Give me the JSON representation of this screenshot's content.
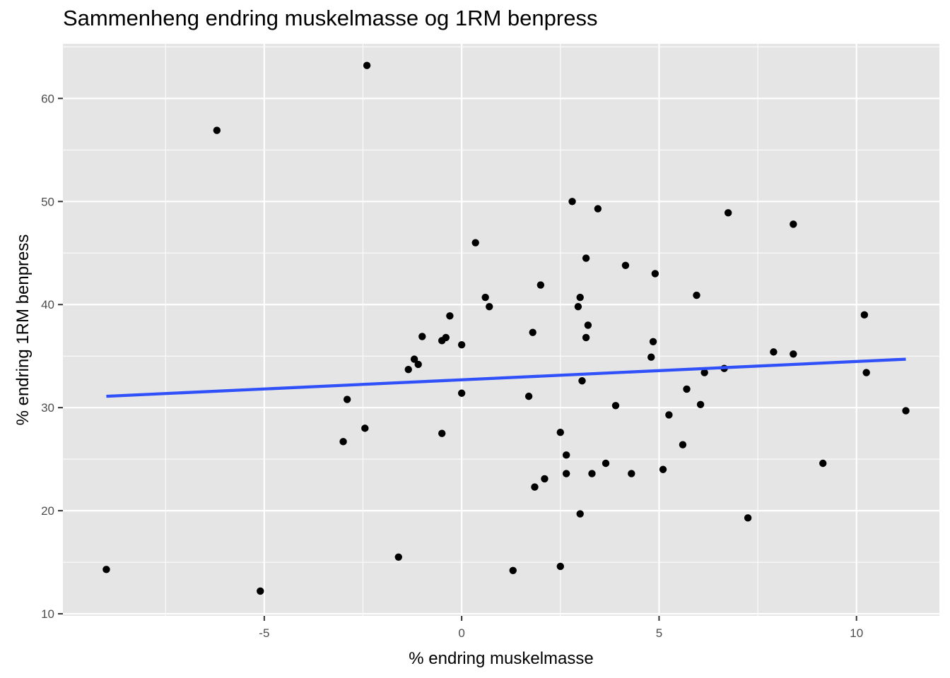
{
  "chart_data": {
    "type": "scatter",
    "title": "Sammenheng endring muskelmasse og 1RM benpress",
    "xlabel": "% endring muskelmasse",
    "ylabel": "% endring 1RM benpress",
    "xlim": [
      -10.1,
      12.1
    ],
    "ylim": [
      9.8,
      65.3
    ],
    "x_ticks": [
      -5,
      0,
      5,
      10
    ],
    "x_tick_labels": [
      "-5",
      "0",
      "5",
      "10"
    ],
    "y_ticks": [
      10,
      20,
      30,
      40,
      50,
      60
    ],
    "y_tick_labels": [
      "10",
      "20",
      "30",
      "40",
      "50",
      "60"
    ],
    "grid": true,
    "legend": "none",
    "colors": {
      "panel": "#e5e5e5",
      "grid": "#ffffff",
      "point": "#000000",
      "trend": "#3050fa"
    },
    "points": [
      {
        "x": -9.0,
        "y": 14.3
      },
      {
        "x": -6.2,
        "y": 56.9
      },
      {
        "x": -5.1,
        "y": 12.2
      },
      {
        "x": -3.0,
        "y": 26.7
      },
      {
        "x": -2.9,
        "y": 30.8
      },
      {
        "x": -2.45,
        "y": 28.0
      },
      {
        "x": -2.4,
        "y": 63.2
      },
      {
        "x": -1.6,
        "y": 15.5
      },
      {
        "x": -1.35,
        "y": 33.7
      },
      {
        "x": -1.2,
        "y": 34.7
      },
      {
        "x": -1.1,
        "y": 34.2
      },
      {
        "x": -1.0,
        "y": 36.9
      },
      {
        "x": -0.5,
        "y": 27.5
      },
      {
        "x": -0.5,
        "y": 36.5
      },
      {
        "x": -0.4,
        "y": 36.8
      },
      {
        "x": -0.3,
        "y": 38.9
      },
      {
        "x": 0.0,
        "y": 36.1
      },
      {
        "x": 0.0,
        "y": 31.4
      },
      {
        "x": 0.35,
        "y": 46.0
      },
      {
        "x": 0.6,
        "y": 40.7
      },
      {
        "x": 0.7,
        "y": 39.8
      },
      {
        "x": 1.3,
        "y": 14.2
      },
      {
        "x": 1.7,
        "y": 31.1
      },
      {
        "x": 1.8,
        "y": 37.3
      },
      {
        "x": 1.85,
        "y": 22.3
      },
      {
        "x": 2.0,
        "y": 41.9
      },
      {
        "x": 2.1,
        "y": 23.1
      },
      {
        "x": 2.5,
        "y": 27.6
      },
      {
        "x": 2.5,
        "y": 14.6
      },
      {
        "x": 2.65,
        "y": 25.4
      },
      {
        "x": 2.65,
        "y": 23.6
      },
      {
        "x": 2.8,
        "y": 50.0
      },
      {
        "x": 2.95,
        "y": 39.8
      },
      {
        "x": 3.0,
        "y": 40.7
      },
      {
        "x": 3.0,
        "y": 19.7
      },
      {
        "x": 3.05,
        "y": 32.6
      },
      {
        "x": 3.15,
        "y": 44.5
      },
      {
        "x": 3.15,
        "y": 36.8
      },
      {
        "x": 3.2,
        "y": 38.0
      },
      {
        "x": 3.3,
        "y": 23.6
      },
      {
        "x": 3.45,
        "y": 49.3
      },
      {
        "x": 3.65,
        "y": 24.6
      },
      {
        "x": 3.9,
        "y": 30.2
      },
      {
        "x": 4.15,
        "y": 43.8
      },
      {
        "x": 4.3,
        "y": 23.6
      },
      {
        "x": 4.8,
        "y": 34.9
      },
      {
        "x": 4.85,
        "y": 36.4
      },
      {
        "x": 4.9,
        "y": 43.0
      },
      {
        "x": 5.1,
        "y": 24.0
      },
      {
        "x": 5.25,
        "y": 29.3
      },
      {
        "x": 5.6,
        "y": 26.4
      },
      {
        "x": 5.7,
        "y": 31.8
      },
      {
        "x": 5.95,
        "y": 40.9
      },
      {
        "x": 6.05,
        "y": 30.3
      },
      {
        "x": 6.15,
        "y": 33.4
      },
      {
        "x": 6.65,
        "y": 33.8
      },
      {
        "x": 6.75,
        "y": 48.9
      },
      {
        "x": 7.25,
        "y": 19.3
      },
      {
        "x": 7.9,
        "y": 35.4
      },
      {
        "x": 8.4,
        "y": 35.2
      },
      {
        "x": 8.4,
        "y": 47.8
      },
      {
        "x": 9.15,
        "y": 24.6
      },
      {
        "x": 10.2,
        "y": 39.0
      },
      {
        "x": 10.25,
        "y": 33.4
      },
      {
        "x": 11.25,
        "y": 29.7
      }
    ],
    "trend_line": {
      "method": "linear fit",
      "x": [
        -9.0,
        11.25
      ],
      "y": [
        31.1,
        34.7
      ]
    }
  }
}
